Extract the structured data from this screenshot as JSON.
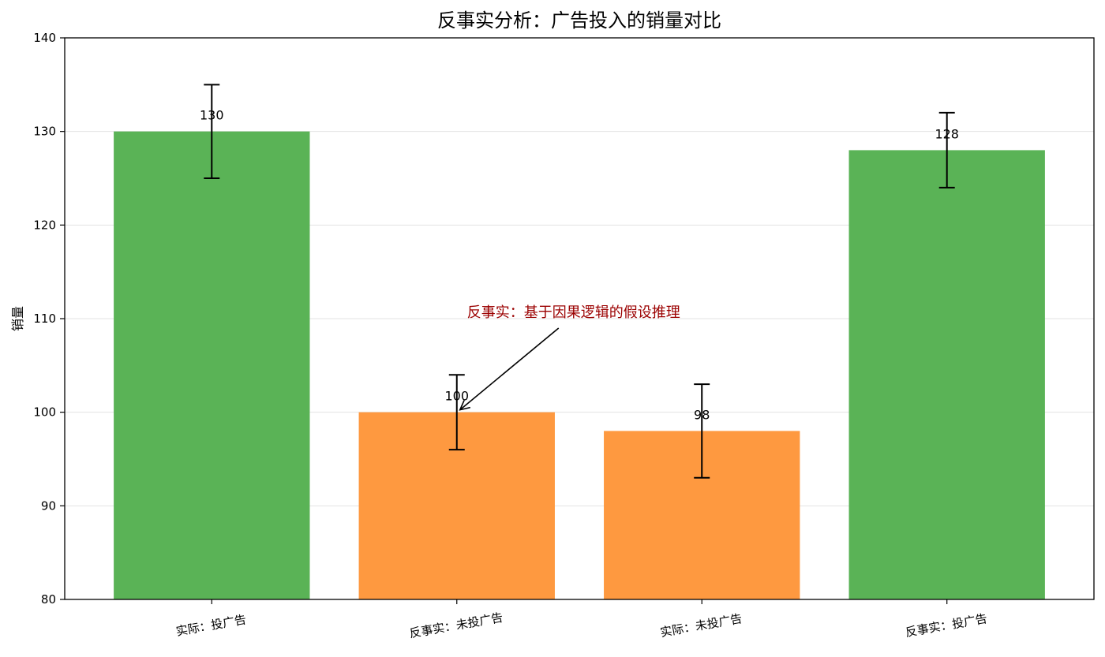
{
  "chart_data": {
    "type": "bar",
    "title": "反事实分析：广告投入的销量对比",
    "xlabel": "",
    "ylabel": "销量",
    "ylim": [
      80,
      140
    ],
    "yticks": [
      80,
      90,
      100,
      110,
      120,
      130,
      140
    ],
    "grid": "horizontal",
    "categories": [
      "实际：投广告",
      "反事实：未投广告",
      "实际：未投广告",
      "反事实：投广告"
    ],
    "values": [
      130,
      100,
      98,
      128
    ],
    "error": [
      5,
      4,
      5,
      4
    ],
    "value_labels": [
      "130",
      "100",
      "98",
      "128"
    ],
    "bar_colors": [
      "#5ab356",
      "#fe9940",
      "#fe9940",
      "#5ab356"
    ],
    "annotation": {
      "text": "反事实：基于因果逻辑的假设推理",
      "color": "#9b0000",
      "target_category_index": 1,
      "target_value": 100,
      "text_value": 110
    }
  }
}
